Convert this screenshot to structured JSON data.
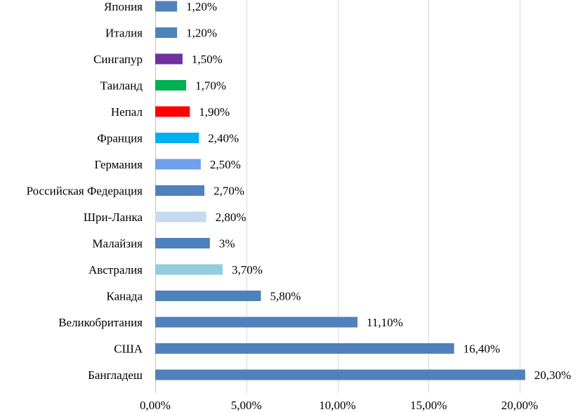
{
  "chart_data": {
    "type": "bar",
    "orientation": "horizontal",
    "title": "",
    "xlabel": "",
    "ylabel": "",
    "xlim": [
      0,
      20
    ],
    "x_ticks": [
      0,
      5,
      10,
      15,
      20
    ],
    "x_tick_labels": [
      "0,00%",
      "5,00%",
      "10,00%",
      "15,00%",
      "20,00%"
    ],
    "grid": "vertical",
    "legend": "none",
    "categories": [
      "Япония",
      "Италия",
      "Сингапур",
      "Таиланд",
      "Непал",
      "Франция",
      "Германия",
      "Российская Федерация",
      "Шри-Ланка",
      "Малайзия",
      "Австралия",
      "Канада",
      "Великобритания",
      "США",
      "Бангладеш"
    ],
    "values": [
      1.2,
      1.2,
      1.5,
      1.7,
      1.9,
      2.4,
      2.5,
      2.7,
      2.8,
      3.0,
      3.7,
      5.8,
      11.1,
      16.4,
      20.3
    ],
    "value_labels": [
      "1,20%",
      "1,20%",
      "1,50%",
      "1,70%",
      "1,90%",
      "2,40%",
      "2,50%",
      "2,70%",
      "2,80%",
      "3%",
      "3,70%",
      "5,80%",
      "11,10%",
      "16,40%",
      "20,30%"
    ],
    "colors": [
      "#4f81bd",
      "#4f81bd",
      "#7030a0",
      "#00b050",
      "#ff0000",
      "#00b0f0",
      "#6fa0eb",
      "#4f81bd",
      "#c6d9f1",
      "#4f81bd",
      "#92cddc",
      "#4f81bd",
      "#4f81bd",
      "#4f81bd",
      "#4f81bd"
    ]
  }
}
